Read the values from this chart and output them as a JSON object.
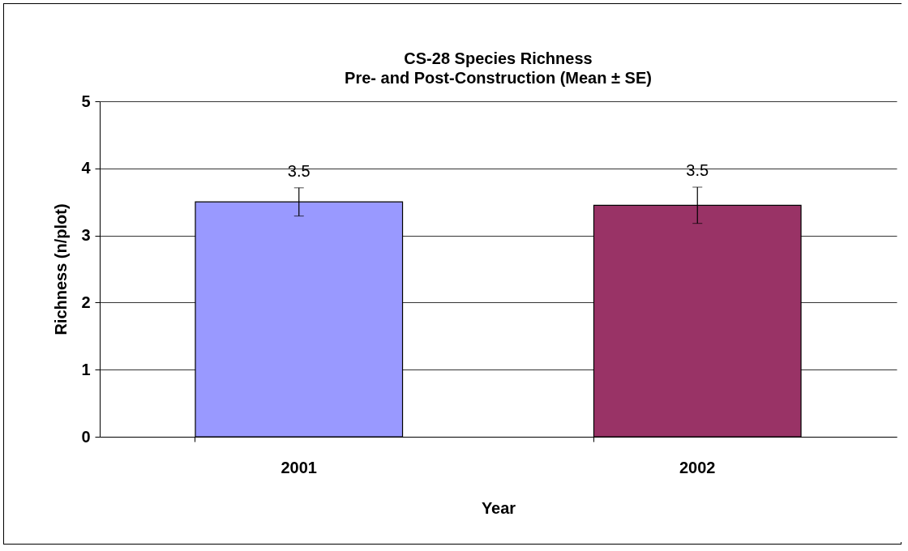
{
  "chart_data": {
    "type": "bar",
    "title": "CS-28 Species Richness",
    "subtitle": "Pre- and Post-Construction (Mean ± SE)",
    "xlabel": "Year",
    "ylabel": "Richness (n/plot)",
    "categories": [
      "2001",
      "2002"
    ],
    "values": [
      3.5,
      3.45
    ],
    "errors": [
      0.21,
      0.27
    ],
    "colors": [
      "#9999ff",
      "#993366"
    ],
    "value_labels": [
      "3.5",
      "3.5"
    ],
    "ylim": [
      0,
      5
    ],
    "yticks": [
      0,
      1,
      2,
      3,
      4,
      5
    ],
    "grid": "y"
  }
}
